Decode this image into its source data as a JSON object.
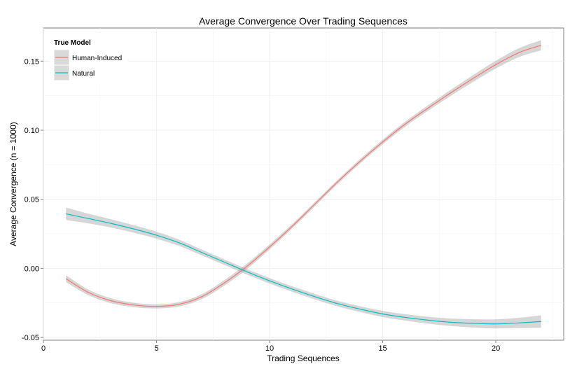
{
  "chart_data": {
    "type": "line",
    "title": "Average Convergence Over Trading Sequences",
    "xlabel": "Trading Sequences",
    "ylabel": "Average Convergence (n = 1000)",
    "xlim": [
      0,
      23
    ],
    "ylim": [
      -0.052,
      0.174
    ],
    "xticks": [
      0,
      5,
      10,
      15,
      20
    ],
    "xtick_labels": [
      "0",
      "5",
      "10",
      "15",
      "20"
    ],
    "yticks": [
      -0.05,
      0.0,
      0.05,
      0.1,
      0.15
    ],
    "ytick_labels": [
      "-0.05",
      "0.00",
      "0.05",
      "0.10",
      "0.15"
    ],
    "grid": true,
    "legend": {
      "title": "True Model",
      "position": "top-left"
    },
    "series": [
      {
        "name": "Human-Induced",
        "color": "#f8766d",
        "x": [
          1,
          2,
          3,
          4,
          5,
          6,
          7,
          8,
          9,
          10,
          11,
          12,
          13,
          14,
          15,
          16,
          17,
          18,
          19,
          20,
          21,
          22
        ],
        "y": [
          -0.0075,
          -0.0175,
          -0.0235,
          -0.0265,
          -0.0275,
          -0.026,
          -0.0205,
          -0.0105,
          0.0015,
          0.0155,
          0.0305,
          0.0465,
          0.0625,
          0.0775,
          0.0915,
          0.1045,
          0.116,
          0.127,
          0.1375,
          0.1475,
          0.156,
          0.1615
        ],
        "band": [
          0.0025,
          0.002,
          0.0018,
          0.0016,
          0.0015,
          0.0016,
          0.0018,
          0.002,
          0.002,
          0.0018,
          0.0016,
          0.0015,
          0.0015,
          0.0016,
          0.0017,
          0.0018,
          0.002,
          0.0022,
          0.0025,
          0.0028,
          0.0032,
          0.0037
        ]
      },
      {
        "name": "Natural",
        "color": "#00bfc4",
        "x": [
          1,
          2,
          3,
          4,
          5,
          6,
          7,
          8,
          9,
          10,
          11,
          12,
          13,
          14,
          15,
          16,
          17,
          18,
          19,
          20,
          21,
          22
        ],
        "y": [
          0.0395,
          0.036,
          0.0325,
          0.0285,
          0.024,
          0.0185,
          0.0115,
          0.0045,
          -0.0025,
          -0.009,
          -0.015,
          -0.0205,
          -0.0255,
          -0.0295,
          -0.033,
          -0.0355,
          -0.0375,
          -0.039,
          -0.0398,
          -0.0402,
          -0.0395,
          -0.0385
        ],
        "band": [
          0.0045,
          0.0035,
          0.003,
          0.0027,
          0.0025,
          0.0023,
          0.0021,
          0.002,
          0.002,
          0.002,
          0.002,
          0.002,
          0.002,
          0.0021,
          0.0022,
          0.0023,
          0.0025,
          0.0027,
          0.003,
          0.0033,
          0.0037,
          0.0045
        ]
      }
    ]
  }
}
